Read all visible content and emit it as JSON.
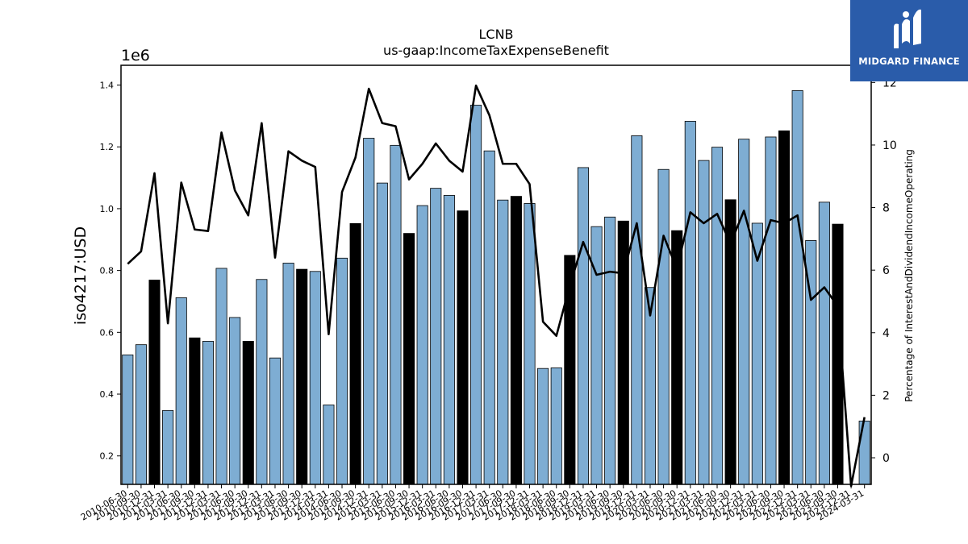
{
  "brand": {
    "name": "MIDGARD FINANCE",
    "accent": "#2a5caa"
  },
  "chart_data": {
    "type": "bar",
    "title": "LCNB",
    "subtitle": "us-gaap:IncomeTaxExpenseBenefit",
    "ylabel": "iso4217:USD",
    "y_multiplier_label": "1e6",
    "y2label": "Percentage of InterestAndDividendIncomeOperating",
    "ylim": [
      0.108,
      1.464
    ],
    "y2lim": [
      -0.85,
      12.55
    ],
    "yticks": [
      "0.2",
      "0.4",
      "0.6",
      "0.8",
      "1.0",
      "1.2",
      "1.4"
    ],
    "y2ticks": [
      "0",
      "2",
      "4",
      "6",
      "8",
      "10",
      "12"
    ],
    "bar_color": "#7eadd3",
    "highlight_color": "#000000",
    "line_color": "#000000",
    "categories": [
      "2010-06-30",
      "2010-09-30",
      "2010-12-31",
      "2011-03-31",
      "2011-06-30",
      "2011-09-30",
      "2011-12-31",
      "2012-03-31",
      "2012-06-30",
      "2012-09-30",
      "2012-12-31",
      "2013-03-31",
      "2013-06-30",
      "2013-09-30",
      "2013-12-31",
      "2014-03-31",
      "2014-06-30",
      "2014-09-30",
      "2014-12-31",
      "2015-03-31",
      "2015-06-30",
      "2015-09-30",
      "2015-12-31",
      "2016-03-31",
      "2016-06-30",
      "2016-09-30",
      "2016-12-31",
      "2017-03-31",
      "2017-06-30",
      "2017-09-30",
      "2017-12-31",
      "2018-03-31",
      "2018-06-30",
      "2018-09-30",
      "2018-12-31",
      "2019-03-31",
      "2019-06-30",
      "2019-09-30",
      "2019-12-31",
      "2020-03-31",
      "2020-06-30",
      "2020-09-30",
      "2020-12-31",
      "2021-03-31",
      "2021-06-30",
      "2021-09-30",
      "2021-12-31",
      "2022-03-31",
      "2022-06-30",
      "2022-09-30",
      "2022-12-31",
      "2023-03-31",
      "2023-06-30",
      "2023-09-30",
      "2023-12-31",
      "2024-03-31"
    ],
    "xticks_shown": [
      "2010-06-30",
      "2010-09-30",
      "2010-12-31",
      "2011-03-31",
      "2011-06-30",
      "2011-09-30",
      "2011-12-31",
      "2012-03-31",
      "2012-06-30",
      "2012-09-30",
      "2012-12-31",
      "2013-03-31",
      "2013-06-30",
      "2013-09-30",
      "2013-12-31",
      "2014-03-31",
      "2014-06-30",
      "2014-09-30",
      "2014-12-31",
      "2015-03-31",
      "2015-06-30",
      "2015-09-30",
      "2015-12-31",
      "2016-03-31",
      "2016-06-30",
      "2016-09-30",
      "2016-12-31",
      "2017-03-31",
      "2017-06-30",
      "2017-09-30",
      "2017-12-31",
      "2018-03-31",
      "2018-06-30",
      "2018-09-30",
      "2018-12-31",
      "2019-03-31",
      "2019-06-30",
      "2019-09-30",
      "2019-12-31",
      "2020-03-31",
      "2020-06-30",
      "2020-09-30",
      "2020-12-31",
      "2021-03-31",
      "2021-06-30",
      "2021-09-30",
      "2021-12-31",
      "2022-03-31",
      "2022-06-30",
      "2022-09-30",
      "2022-12-31",
      "2023-03-31",
      "2023-06-30",
      "2023-09-30",
      "2023-12-31",
      "2024-03-31"
    ],
    "values": [
      0.527,
      0.56,
      0.769,
      0.347,
      0.712,
      0.582,
      0.571,
      0.807,
      0.648,
      0.571,
      0.771,
      0.517,
      0.824,
      0.804,
      0.797,
      0.365,
      0.84,
      0.952,
      1.228,
      1.083,
      1.205,
      0.92,
      1.01,
      1.066,
      1.043,
      0.993,
      1.335,
      1.187,
      1.028,
      1.04,
      1.017,
      0.483,
      0.485,
      0.849,
      1.133,
      0.942,
      0.973,
      0.96,
      1.236,
      0.745,
      1.127,
      0.929,
      1.283,
      1.156,
      1.199,
      1.029,
      1.225,
      0.953,
      1.232,
      1.252,
      1.382,
      0.897,
      1.021,
      0.95,
      null,
      0.313
    ],
    "highlighted": [
      false,
      false,
      true,
      false,
      false,
      true,
      false,
      false,
      false,
      true,
      false,
      false,
      false,
      true,
      false,
      false,
      false,
      true,
      false,
      false,
      false,
      true,
      false,
      false,
      false,
      true,
      false,
      false,
      false,
      true,
      false,
      false,
      false,
      true,
      false,
      false,
      false,
      true,
      false,
      false,
      false,
      true,
      false,
      false,
      false,
      true,
      false,
      false,
      false,
      true,
      false,
      false,
      false,
      true,
      false,
      false
    ],
    "line_values": [
      6.2,
      6.6,
      9.1,
      4.3,
      8.8,
      7.3,
      7.25,
      10.4,
      8.55,
      7.75,
      10.7,
      6.4,
      9.8,
      9.5,
      9.3,
      3.95,
      8.5,
      9.6,
      11.8,
      10.7,
      10.6,
      8.9,
      9.4,
      10.05,
      9.5,
      9.15,
      11.9,
      10.95,
      9.4,
      9.4,
      8.75,
      4.35,
      3.9,
      5.5,
      6.9,
      5.85,
      5.95,
      5.9,
      7.5,
      4.55,
      7.1,
      6.05,
      7.85,
      7.5,
      7.8,
      6.85,
      7.9,
      6.3,
      7.6,
      7.5,
      7.75,
      5.05,
      5.45,
      4.85,
      -0.9,
      1.3
    ]
  }
}
